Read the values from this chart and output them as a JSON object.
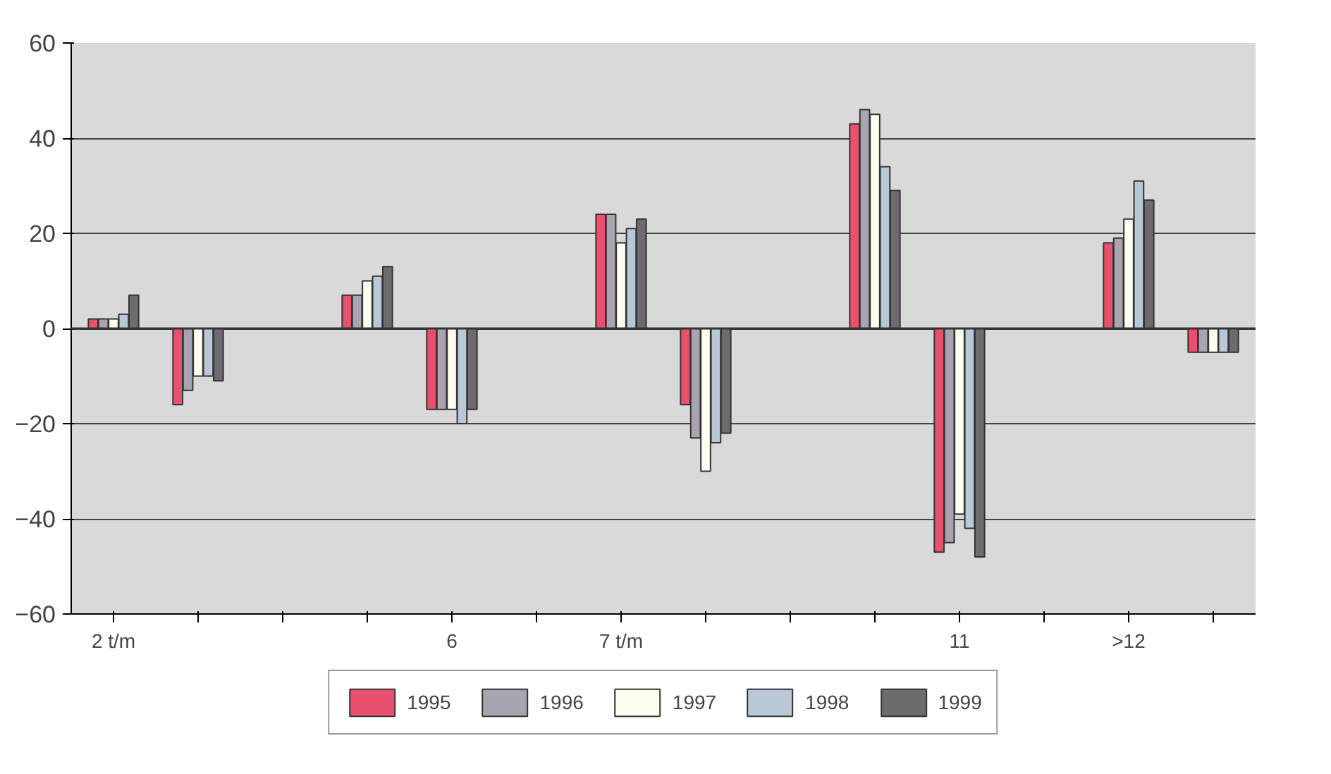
{
  "chart_data": {
    "type": "bar",
    "categories": [
      "2 t/m",
      null,
      null,
      null,
      "6",
      null,
      "7 t/m",
      null,
      null,
      null,
      "11",
      null,
      ">12",
      null
    ],
    "series": [
      {
        "name": "1995",
        "color": "#e8506e",
        "values": [
          2,
          -16,
          null,
          7,
          -17,
          null,
          24,
          -16,
          null,
          43,
          -47,
          null,
          18,
          -5
        ]
      },
      {
        "name": "1996",
        "color": "#a9a4b0",
        "values": [
          2,
          -13,
          null,
          7,
          -17,
          null,
          24,
          -23,
          null,
          46,
          -45,
          null,
          19,
          -5
        ]
      },
      {
        "name": "1997",
        "color": "#fdfdf0",
        "values": [
          2,
          -10,
          null,
          10,
          -17,
          null,
          18,
          -30,
          null,
          45,
          -39,
          null,
          23,
          -5
        ]
      },
      {
        "name": "1998",
        "color": "#b9c8d6",
        "values": [
          3,
          -10,
          null,
          11,
          -20,
          null,
          21,
          -24,
          null,
          34,
          -42,
          null,
          31,
          -5
        ]
      },
      {
        "name": "1999",
        "color": "#6e6a70",
        "values": [
          7,
          -11,
          null,
          13,
          -17,
          null,
          23,
          -22,
          null,
          29,
          -48,
          null,
          27,
          -5
        ]
      }
    ],
    "ylim": [
      -60,
      60
    ],
    "yticks": [
      -60,
      -40,
      -20,
      0,
      20,
      40,
      60
    ],
    "grid": "y",
    "legend": "bottom"
  }
}
